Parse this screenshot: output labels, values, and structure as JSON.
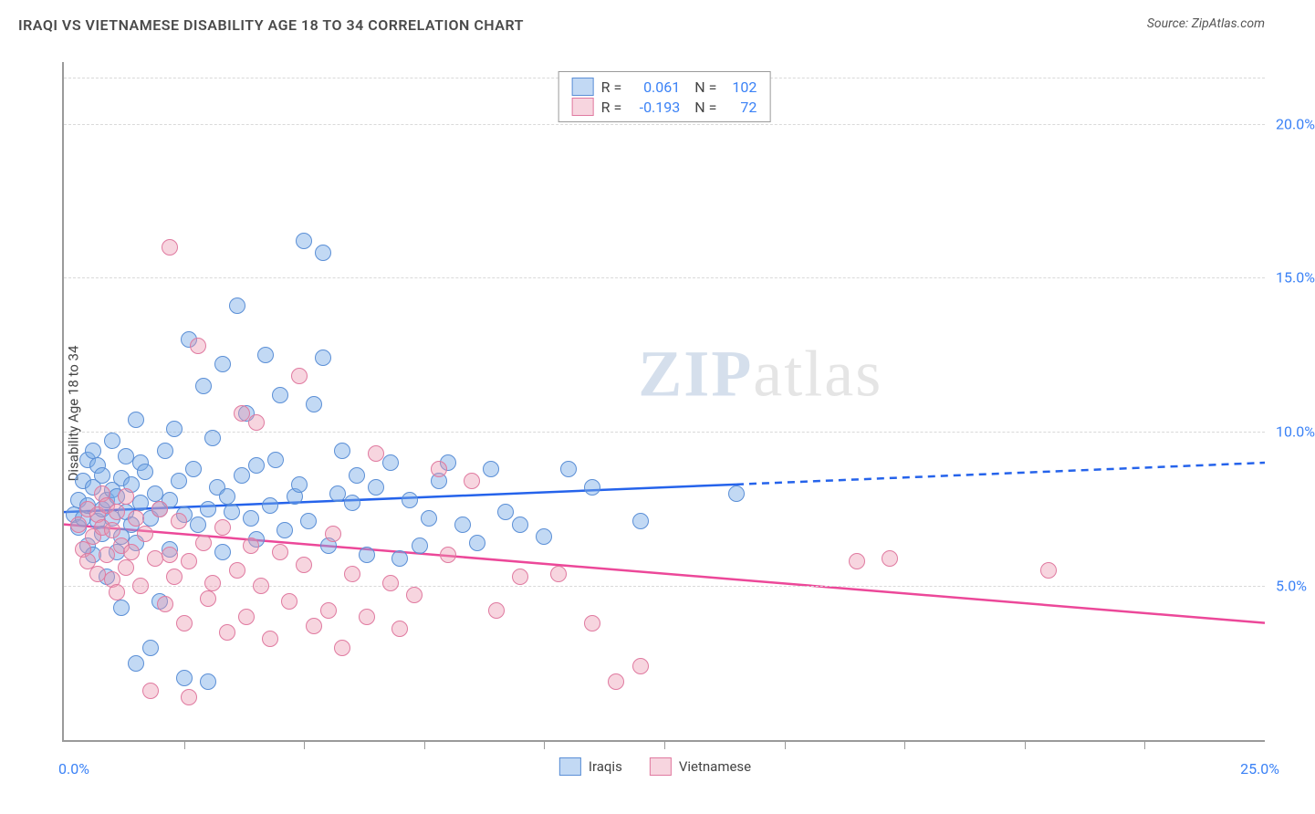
{
  "header": {
    "title": "IRAQI VS VIETNAMESE DISABILITY AGE 18 TO 34 CORRELATION CHART",
    "source": "Source: ZipAtlas.com"
  },
  "watermark": {
    "prefix": "ZIP",
    "suffix": "atlas"
  },
  "chart": {
    "type": "scatter",
    "y_label": "Disability Age 18 to 34",
    "x_domain": [
      0,
      25
    ],
    "y_domain": [
      0,
      22
    ],
    "x_origin_label": "0.0%",
    "x_max_label": "25.0%",
    "y_ticks": [
      {
        "y": 5,
        "label": "5.0%"
      },
      {
        "y": 10,
        "label": "10.0%"
      },
      {
        "y": 15,
        "label": "15.0%"
      },
      {
        "y": 20,
        "label": "20.0%"
      }
    ],
    "x_ticks": [
      2.5,
      5,
      7.5,
      10,
      12.5,
      15,
      17.5,
      20,
      22.5
    ],
    "grid_color": "#d9d9d9",
    "axis_color": "#9a9a9a",
    "background": "#ffffff",
    "marker_radius": 9,
    "marker_stroke_width": 1.2,
    "series": [
      {
        "name": "Iraqis",
        "fill": "rgba(120,170,230,0.45)",
        "stroke": "#5b8fd6",
        "trend_color": "#2563eb",
        "trend_solid_xmax": 14,
        "trend": {
          "x1": 0,
          "y1": 7.4,
          "x2": 25,
          "y2": 9.0
        },
        "R": "0.061",
        "N": "102",
        "points": [
          [
            0.2,
            7.3
          ],
          [
            0.3,
            7.8
          ],
          [
            0.3,
            6.9
          ],
          [
            0.4,
            8.4
          ],
          [
            0.4,
            7.2
          ],
          [
            0.5,
            9.1
          ],
          [
            0.5,
            6.3
          ],
          [
            0.5,
            7.6
          ],
          [
            0.6,
            8.2
          ],
          [
            0.6,
            9.4
          ],
          [
            0.6,
            6.0
          ],
          [
            0.7,
            7.1
          ],
          [
            0.7,
            8.9
          ],
          [
            0.8,
            7.5
          ],
          [
            0.8,
            6.7
          ],
          [
            0.8,
            8.6
          ],
          [
            0.9,
            7.8
          ],
          [
            0.9,
            5.3
          ],
          [
            1.0,
            9.7
          ],
          [
            1.0,
            7.2
          ],
          [
            1.0,
            8.1
          ],
          [
            1.1,
            6.1
          ],
          [
            1.1,
            7.9
          ],
          [
            1.2,
            8.5
          ],
          [
            1.2,
            6.6
          ],
          [
            1.2,
            4.3
          ],
          [
            1.3,
            7.4
          ],
          [
            1.3,
            9.2
          ],
          [
            1.4,
            7.0
          ],
          [
            1.4,
            8.3
          ],
          [
            1.5,
            10.4
          ],
          [
            1.5,
            6.4
          ],
          [
            1.5,
            2.5
          ],
          [
            1.6,
            7.7
          ],
          [
            1.6,
            9.0
          ],
          [
            1.7,
            8.7
          ],
          [
            1.8,
            3.0
          ],
          [
            1.8,
            7.2
          ],
          [
            1.9,
            8.0
          ],
          [
            2.0,
            7.5
          ],
          [
            2.0,
            4.5
          ],
          [
            2.1,
            9.4
          ],
          [
            2.2,
            7.8
          ],
          [
            2.2,
            6.2
          ],
          [
            2.3,
            10.1
          ],
          [
            2.4,
            8.4
          ],
          [
            2.5,
            2.0
          ],
          [
            2.5,
            7.3
          ],
          [
            2.6,
            13.0
          ],
          [
            2.7,
            8.8
          ],
          [
            2.8,
            7.0
          ],
          [
            2.9,
            11.5
          ],
          [
            3.0,
            1.9
          ],
          [
            3.0,
            7.5
          ],
          [
            3.1,
            9.8
          ],
          [
            3.2,
            8.2
          ],
          [
            3.3,
            12.2
          ],
          [
            3.3,
            6.1
          ],
          [
            3.4,
            7.9
          ],
          [
            3.5,
            7.4
          ],
          [
            3.6,
            14.1
          ],
          [
            3.7,
            8.6
          ],
          [
            3.8,
            10.6
          ],
          [
            3.9,
            7.2
          ],
          [
            4.0,
            6.5
          ],
          [
            4.0,
            8.9
          ],
          [
            4.2,
            12.5
          ],
          [
            4.3,
            7.6
          ],
          [
            4.4,
            9.1
          ],
          [
            4.5,
            11.2
          ],
          [
            4.6,
            6.8
          ],
          [
            4.8,
            7.9
          ],
          [
            4.9,
            8.3
          ],
          [
            5.0,
            16.2
          ],
          [
            5.1,
            7.1
          ],
          [
            5.2,
            10.9
          ],
          [
            5.4,
            12.4
          ],
          [
            5.4,
            15.8
          ],
          [
            5.5,
            6.3
          ],
          [
            5.7,
            8.0
          ],
          [
            5.8,
            9.4
          ],
          [
            6.0,
            7.7
          ],
          [
            6.1,
            8.6
          ],
          [
            6.3,
            6.0
          ],
          [
            6.5,
            8.2
          ],
          [
            6.8,
            9.0
          ],
          [
            7.0,
            5.9
          ],
          [
            7.2,
            7.8
          ],
          [
            7.4,
            6.3
          ],
          [
            7.6,
            7.2
          ],
          [
            7.8,
            8.4
          ],
          [
            8.0,
            9.0
          ],
          [
            8.3,
            7.0
          ],
          [
            8.6,
            6.4
          ],
          [
            8.9,
            8.8
          ],
          [
            9.2,
            7.4
          ],
          [
            9.5,
            7.0
          ],
          [
            10.0,
            6.6
          ],
          [
            10.5,
            8.8
          ],
          [
            11.0,
            8.2
          ],
          [
            12.0,
            7.1
          ],
          [
            14.0,
            8.0
          ]
        ]
      },
      {
        "name": "Vietnamese",
        "fill": "rgba(235,150,175,0.40)",
        "stroke": "#e07aa0",
        "trend_color": "#ec4899",
        "trend_solid_xmax": 25,
        "trend": {
          "x1": 0,
          "y1": 7.0,
          "x2": 25,
          "y2": 3.8
        },
        "R": "-0.193",
        "N": "72",
        "points": [
          [
            0.3,
            7.0
          ],
          [
            0.4,
            6.2
          ],
          [
            0.5,
            7.5
          ],
          [
            0.5,
            5.8
          ],
          [
            0.6,
            6.6
          ],
          [
            0.7,
            7.3
          ],
          [
            0.7,
            5.4
          ],
          [
            0.8,
            6.9
          ],
          [
            0.8,
            8.0
          ],
          [
            0.9,
            6.0
          ],
          [
            0.9,
            7.6
          ],
          [
            1.0,
            5.2
          ],
          [
            1.0,
            6.8
          ],
          [
            1.1,
            7.4
          ],
          [
            1.1,
            4.8
          ],
          [
            1.2,
            6.3
          ],
          [
            1.3,
            7.9
          ],
          [
            1.3,
            5.6
          ],
          [
            1.4,
            6.1
          ],
          [
            1.5,
            7.2
          ],
          [
            1.6,
            5.0
          ],
          [
            1.7,
            6.7
          ],
          [
            1.8,
            1.6
          ],
          [
            1.9,
            5.9
          ],
          [
            2.0,
            7.5
          ],
          [
            2.1,
            4.4
          ],
          [
            2.2,
            6.0
          ],
          [
            2.2,
            16.0
          ],
          [
            2.3,
            5.3
          ],
          [
            2.4,
            7.1
          ],
          [
            2.5,
            3.8
          ],
          [
            2.6,
            1.4
          ],
          [
            2.6,
            5.8
          ],
          [
            2.8,
            12.8
          ],
          [
            2.9,
            6.4
          ],
          [
            3.0,
            4.6
          ],
          [
            3.1,
            5.1
          ],
          [
            3.3,
            6.9
          ],
          [
            3.4,
            3.5
          ],
          [
            3.6,
            5.5
          ],
          [
            3.7,
            10.6
          ],
          [
            3.8,
            4.0
          ],
          [
            3.9,
            6.3
          ],
          [
            4.0,
            10.3
          ],
          [
            4.1,
            5.0
          ],
          [
            4.3,
            3.3
          ],
          [
            4.5,
            6.1
          ],
          [
            4.7,
            4.5
          ],
          [
            4.9,
            11.8
          ],
          [
            5.0,
            5.7
          ],
          [
            5.2,
            3.7
          ],
          [
            5.5,
            4.2
          ],
          [
            5.6,
            6.7
          ],
          [
            5.8,
            3.0
          ],
          [
            6.0,
            5.4
          ],
          [
            6.3,
            4.0
          ],
          [
            6.5,
            9.3
          ],
          [
            6.8,
            5.1
          ],
          [
            7.0,
            3.6
          ],
          [
            7.3,
            4.7
          ],
          [
            7.8,
            8.8
          ],
          [
            8.0,
            6.0
          ],
          [
            8.5,
            8.4
          ],
          [
            9.0,
            4.2
          ],
          [
            9.5,
            5.3
          ],
          [
            10.3,
            5.4
          ],
          [
            11.0,
            3.8
          ],
          [
            11.5,
            1.9
          ],
          [
            12.0,
            2.4
          ],
          [
            16.5,
            5.8
          ],
          [
            17.2,
            5.9
          ],
          [
            20.5,
            5.5
          ]
        ]
      }
    ]
  },
  "legend": {
    "items": [
      {
        "label": "Iraqis"
      },
      {
        "label": "Vietnamese"
      }
    ]
  }
}
